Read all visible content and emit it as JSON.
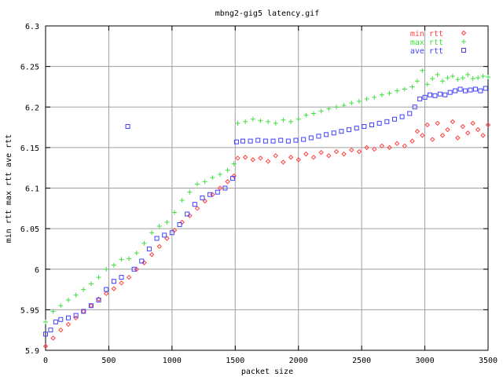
{
  "chart_data": {
    "type": "scatter",
    "title": "mbng2-gig5 latency.gif",
    "xlabel": "packet size",
    "ylabel": "min rtt max rtt ave rtt",
    "xlim": [
      0,
      3500
    ],
    "ylim": [
      5.9,
      6.3
    ],
    "xticks": [
      0,
      500,
      1000,
      1500,
      2000,
      2500,
      3000,
      3500
    ],
    "xtick_labels": [
      "0",
      "500",
      "1000",
      "1500",
      "2000",
      "2500",
      "3000",
      "3500"
    ],
    "yticks": [
      5.9,
      5.95,
      6.0,
      6.05,
      6.1,
      6.15,
      6.2,
      6.25,
      6.3
    ],
    "ytick_labels": [
      "5.9",
      "5.95",
      "6",
      "6.05",
      "6.1",
      "6.15",
      "6.2",
      "6.25",
      "6.3"
    ],
    "grid": true,
    "legend_position": "top-right",
    "series": [
      {
        "name": "min rtt",
        "marker": "diamond",
        "color": "#ff4040",
        "points": [
          [
            0,
            5.905
          ],
          [
            60,
            5.915
          ],
          [
            120,
            5.925
          ],
          [
            180,
            5.932
          ],
          [
            240,
            5.94
          ],
          [
            300,
            5.948
          ],
          [
            360,
            5.955
          ],
          [
            420,
            5.963
          ],
          [
            480,
            5.97
          ],
          [
            540,
            5.976
          ],
          [
            600,
            5.983
          ],
          [
            660,
            5.99
          ],
          [
            720,
            6.0
          ],
          [
            780,
            6.008
          ],
          [
            840,
            6.018
          ],
          [
            900,
            6.028
          ],
          [
            960,
            6.038
          ],
          [
            1020,
            6.048
          ],
          [
            1080,
            6.058
          ],
          [
            1140,
            6.066
          ],
          [
            1200,
            6.075
          ],
          [
            1260,
            6.084
          ],
          [
            1320,
            6.092
          ],
          [
            1380,
            6.1
          ],
          [
            1440,
            6.108
          ],
          [
            1490,
            6.115
          ],
          [
            1520,
            6.137
          ],
          [
            1580,
            6.138
          ],
          [
            1640,
            6.135
          ],
          [
            1700,
            6.137
          ],
          [
            1760,
            6.133
          ],
          [
            1820,
            6.14
          ],
          [
            1880,
            6.132
          ],
          [
            1940,
            6.138
          ],
          [
            2000,
            6.135
          ],
          [
            2060,
            6.142
          ],
          [
            2120,
            6.138
          ],
          [
            2180,
            6.144
          ],
          [
            2240,
            6.14
          ],
          [
            2300,
            6.145
          ],
          [
            2360,
            6.142
          ],
          [
            2420,
            6.147
          ],
          [
            2480,
            6.145
          ],
          [
            2540,
            6.15
          ],
          [
            2600,
            6.148
          ],
          [
            2660,
            6.152
          ],
          [
            2720,
            6.15
          ],
          [
            2780,
            6.155
          ],
          [
            2840,
            6.152
          ],
          [
            2900,
            6.158
          ],
          [
            2940,
            6.17
          ],
          [
            2980,
            6.165
          ],
          [
            3020,
            6.178
          ],
          [
            3060,
            6.16
          ],
          [
            3100,
            6.18
          ],
          [
            3140,
            6.165
          ],
          [
            3180,
            6.172
          ],
          [
            3220,
            6.182
          ],
          [
            3260,
            6.162
          ],
          [
            3300,
            6.176
          ],
          [
            3340,
            6.168
          ],
          [
            3380,
            6.18
          ],
          [
            3420,
            6.172
          ],
          [
            3460,
            6.165
          ],
          [
            3500,
            6.178
          ]
        ]
      },
      {
        "name": "max rtt",
        "marker": "plus",
        "color": "#40e040",
        "points": [
          [
            0,
            5.935
          ],
          [
            60,
            5.948
          ],
          [
            120,
            5.955
          ],
          [
            180,
            5.962
          ],
          [
            240,
            5.968
          ],
          [
            300,
            5.975
          ],
          [
            360,
            5.982
          ],
          [
            420,
            5.99
          ],
          [
            480,
            6.0
          ],
          [
            540,
            6.005
          ],
          [
            600,
            6.012
          ],
          [
            660,
            6.013
          ],
          [
            720,
            6.02
          ],
          [
            780,
            6.032
          ],
          [
            840,
            6.045
          ],
          [
            900,
            6.053
          ],
          [
            960,
            6.058
          ],
          [
            1020,
            6.07
          ],
          [
            1080,
            6.085
          ],
          [
            1140,
            6.095
          ],
          [
            1200,
            6.105
          ],
          [
            1260,
            6.108
          ],
          [
            1320,
            6.113
          ],
          [
            1380,
            6.117
          ],
          [
            1440,
            6.122
          ],
          [
            1490,
            6.13
          ],
          [
            1520,
            6.18
          ],
          [
            1580,
            6.182
          ],
          [
            1640,
            6.185
          ],
          [
            1700,
            6.183
          ],
          [
            1760,
            6.182
          ],
          [
            1820,
            6.18
          ],
          [
            1880,
            6.184
          ],
          [
            1940,
            6.182
          ],
          [
            2000,
            6.185
          ],
          [
            2060,
            6.19
          ],
          [
            2120,
            6.192
          ],
          [
            2180,
            6.195
          ],
          [
            2240,
            6.198
          ],
          [
            2300,
            6.2
          ],
          [
            2360,
            6.202
          ],
          [
            2420,
            6.205
          ],
          [
            2480,
            6.207
          ],
          [
            2540,
            6.21
          ],
          [
            2600,
            6.212
          ],
          [
            2660,
            6.215
          ],
          [
            2720,
            6.217
          ],
          [
            2780,
            6.22
          ],
          [
            2840,
            6.222
          ],
          [
            2900,
            6.225
          ],
          [
            2940,
            6.232
          ],
          [
            2980,
            6.245
          ],
          [
            3020,
            6.228
          ],
          [
            3060,
            6.235
          ],
          [
            3100,
            6.24
          ],
          [
            3140,
            6.232
          ],
          [
            3180,
            6.236
          ],
          [
            3220,
            6.238
          ],
          [
            3260,
            6.234
          ],
          [
            3300,
            6.236
          ],
          [
            3340,
            6.24
          ],
          [
            3380,
            6.235
          ],
          [
            3420,
            6.236
          ],
          [
            3460,
            6.238
          ],
          [
            3500,
            6.237
          ]
        ]
      },
      {
        "name": "ave rtt",
        "marker": "square",
        "color": "#4040ff",
        "points": [
          [
            0,
            5.92
          ],
          [
            40,
            5.925
          ],
          [
            80,
            5.935
          ],
          [
            120,
            5.938
          ],
          [
            180,
            5.94
          ],
          [
            240,
            5.943
          ],
          [
            300,
            5.948
          ],
          [
            360,
            5.955
          ],
          [
            420,
            5.962
          ],
          [
            480,
            5.975
          ],
          [
            540,
            5.985
          ],
          [
            600,
            5.99
          ],
          [
            650,
            6.176
          ],
          [
            700,
            6.0
          ],
          [
            760,
            6.01
          ],
          [
            820,
            6.025
          ],
          [
            880,
            6.038
          ],
          [
            940,
            6.042
          ],
          [
            1000,
            6.045
          ],
          [
            1060,
            6.055
          ],
          [
            1120,
            6.068
          ],
          [
            1180,
            6.08
          ],
          [
            1240,
            6.088
          ],
          [
            1300,
            6.092
          ],
          [
            1360,
            6.095
          ],
          [
            1420,
            6.1
          ],
          [
            1480,
            6.112
          ],
          [
            1510,
            6.157
          ],
          [
            1560,
            6.158
          ],
          [
            1620,
            6.158
          ],
          [
            1680,
            6.159
          ],
          [
            1740,
            6.158
          ],
          [
            1800,
            6.158
          ],
          [
            1860,
            6.159
          ],
          [
            1920,
            6.158
          ],
          [
            1980,
            6.159
          ],
          [
            2040,
            6.16
          ],
          [
            2100,
            6.162
          ],
          [
            2160,
            6.164
          ],
          [
            2220,
            6.166
          ],
          [
            2280,
            6.168
          ],
          [
            2340,
            6.17
          ],
          [
            2400,
            6.172
          ],
          [
            2460,
            6.174
          ],
          [
            2520,
            6.176
          ],
          [
            2580,
            6.178
          ],
          [
            2640,
            6.18
          ],
          [
            2700,
            6.182
          ],
          [
            2760,
            6.185
          ],
          [
            2820,
            6.188
          ],
          [
            2880,
            6.192
          ],
          [
            2920,
            6.2
          ],
          [
            2960,
            6.21
          ],
          [
            3000,
            6.212
          ],
          [
            3040,
            6.215
          ],
          [
            3080,
            6.214
          ],
          [
            3120,
            6.216
          ],
          [
            3160,
            6.215
          ],
          [
            3200,
            6.218
          ],
          [
            3240,
            6.22
          ],
          [
            3280,
            6.222
          ],
          [
            3320,
            6.22
          ],
          [
            3360,
            6.221
          ],
          [
            3400,
            6.222
          ],
          [
            3440,
            6.22
          ],
          [
            3480,
            6.223
          ]
        ]
      }
    ]
  }
}
